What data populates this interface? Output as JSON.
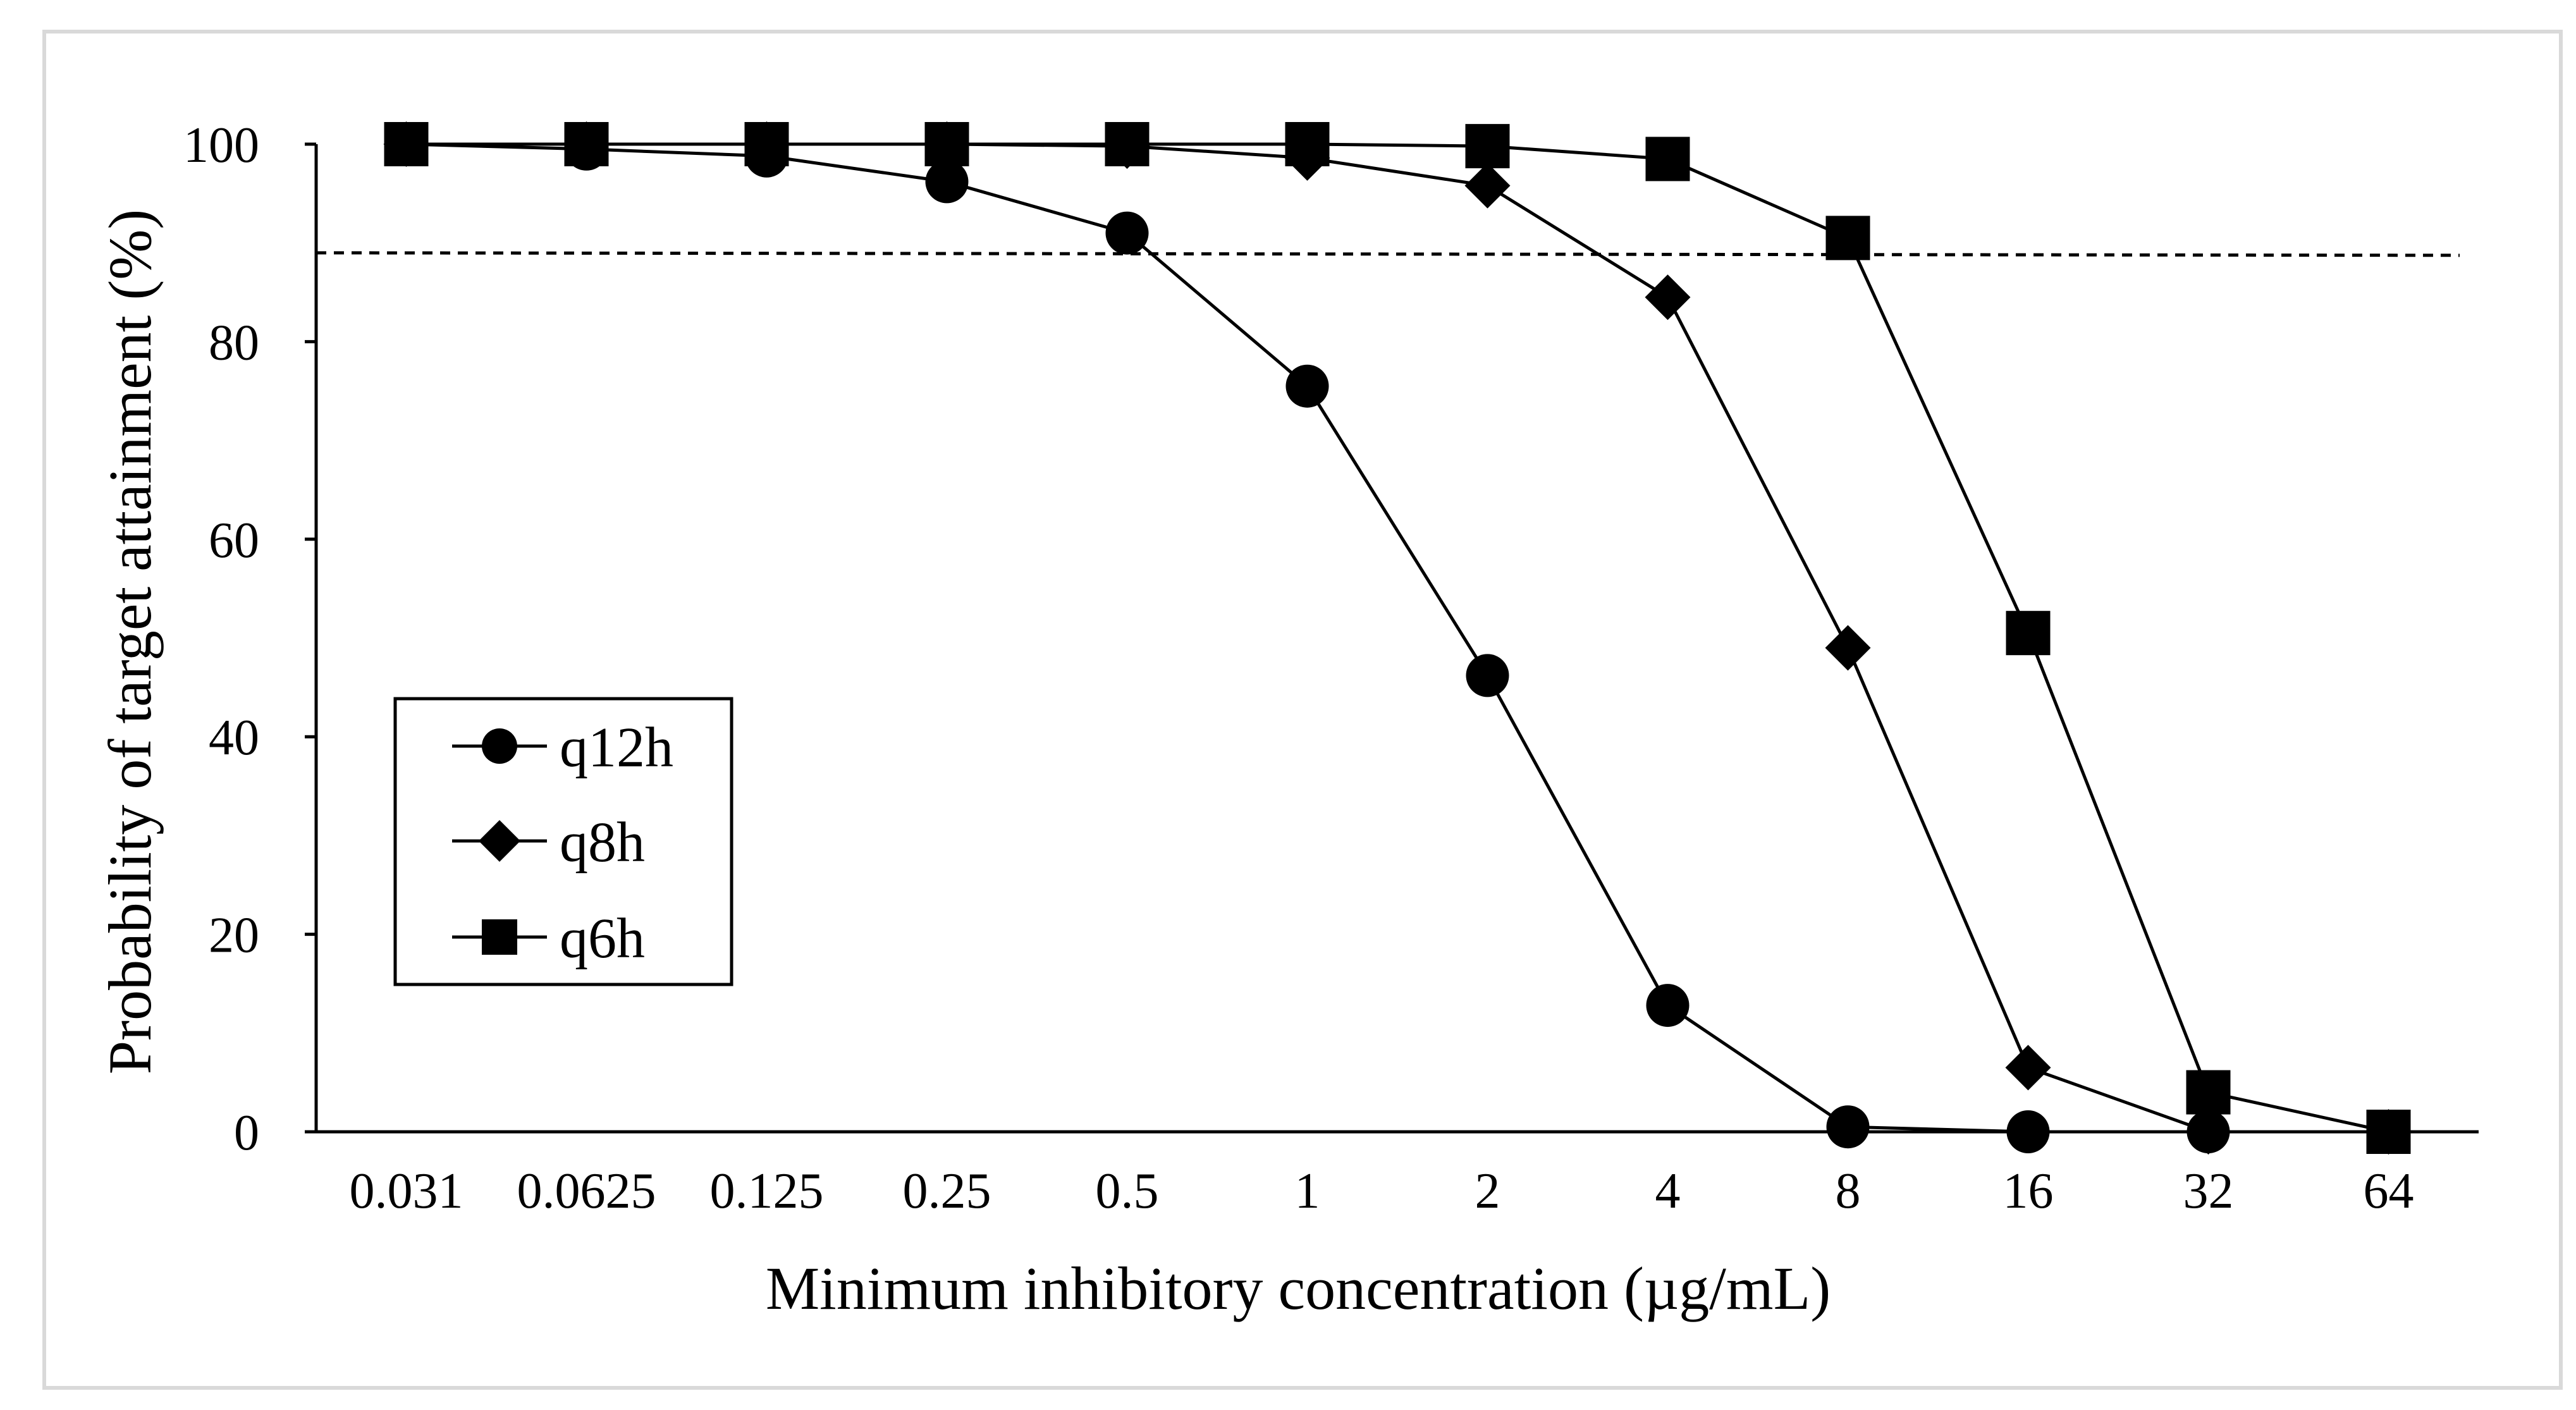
{
  "chart_data": {
    "type": "line",
    "title": "",
    "xlabel": "Minimum inhibitory concentration (µg/mL)",
    "ylabel": "Probability of target attainment (%)",
    "categories": [
      "0.031",
      "0.0625",
      "0.125",
      "0.25",
      "0.5",
      "1",
      "2",
      "4",
      "8",
      "16",
      "32",
      "64"
    ],
    "ylim": [
      0,
      100
    ],
    "yticks": [
      0,
      20,
      40,
      60,
      80,
      100
    ],
    "yticklabels": [
      "0",
      "20",
      "40",
      "60",
      "80",
      "100"
    ],
    "grid": false,
    "legend_position": "lower-left",
    "reference_line": {
      "value": 89,
      "style": "dashed"
    },
    "series": [
      {
        "name": "q12h",
        "marker": "circle",
        "values": [
          100,
          99.5,
          98.8,
          96.2,
          91,
          75.5,
          46.2,
          12.8,
          0.5,
          0,
          0,
          0
        ]
      },
      {
        "name": "q8h",
        "marker": "diamond",
        "values": [
          100,
          100,
          100,
          100,
          99.8,
          98.6,
          95.8,
          84.5,
          49,
          6.5,
          0,
          0
        ]
      },
      {
        "name": "q6h",
        "marker": "square",
        "values": [
          100,
          100,
          100,
          100,
          100,
          100,
          99.8,
          98.5,
          90.5,
          50.5,
          4,
          0
        ]
      }
    ],
    "colors": {
      "line": "#000000",
      "frame": "#d9d9d9",
      "background": "#ffffff"
    }
  }
}
